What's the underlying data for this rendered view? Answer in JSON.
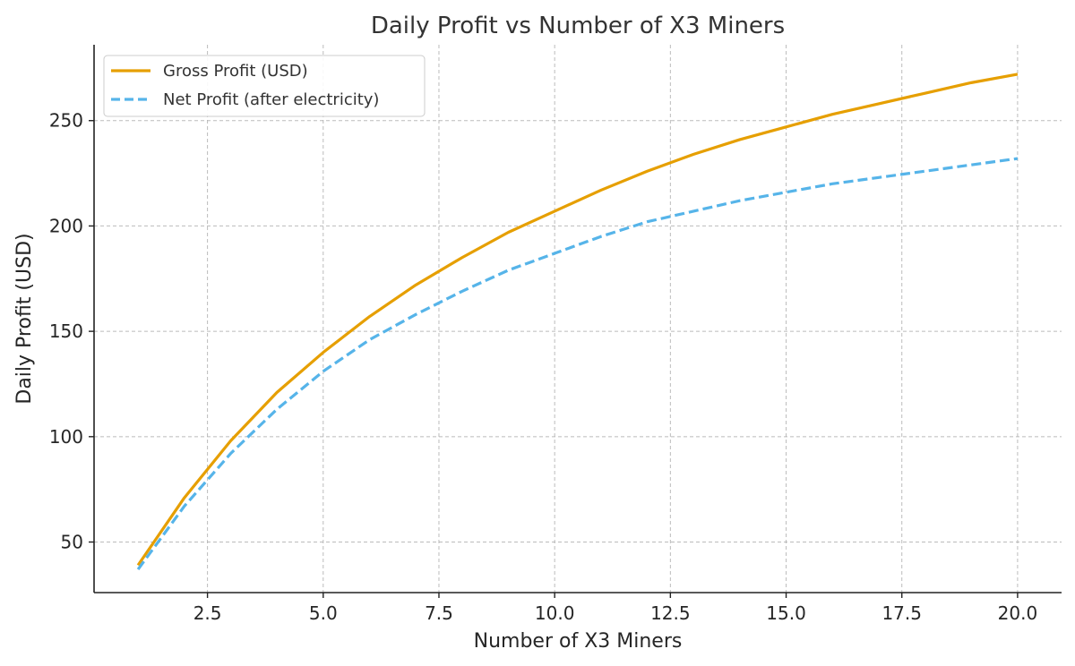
{
  "chart_data": {
    "type": "line",
    "title": "Daily Profit vs Number of X3 Miners",
    "xlabel": "Number of X3 Miners",
    "ylabel": "Daily Profit (USD)",
    "xlim": [
      0.05,
      20.95
    ],
    "ylim": [
      26,
      286
    ],
    "xticks": [
      2.5,
      5.0,
      7.5,
      10.0,
      12.5,
      15.0,
      17.5,
      20.0
    ],
    "xtick_labels": [
      "2.5",
      "5.0",
      "7.5",
      "10.0",
      "12.5",
      "15.0",
      "17.5",
      "20.0"
    ],
    "yticks": [
      50,
      100,
      150,
      200,
      250
    ],
    "ytick_labels": [
      "50",
      "100",
      "150",
      "200",
      "250"
    ],
    "grid": true,
    "legend_position": "top-left",
    "x": [
      1,
      2,
      3,
      4,
      5,
      6,
      7,
      8,
      9,
      10,
      11,
      12,
      13,
      14,
      15,
      16,
      17,
      18,
      19,
      20
    ],
    "series": [
      {
        "name": "Gross Profit (USD)",
        "color": "#E69F00",
        "style": "solid",
        "values": [
          39,
          71,
          98,
          121,
          140,
          157,
          172,
          185,
          197,
          207,
          217,
          226,
          234,
          241,
          247,
          253,
          258,
          263,
          268,
          272
        ]
      },
      {
        "name": "Net Profit (after electricity)",
        "color": "#56B4E9",
        "style": "dashed",
        "values": [
          37,
          67,
          92,
          113,
          131,
          146,
          158,
          169,
          179,
          187,
          195,
          202,
          207,
          212,
          216,
          220,
          223,
          226,
          229,
          232
        ]
      }
    ]
  }
}
